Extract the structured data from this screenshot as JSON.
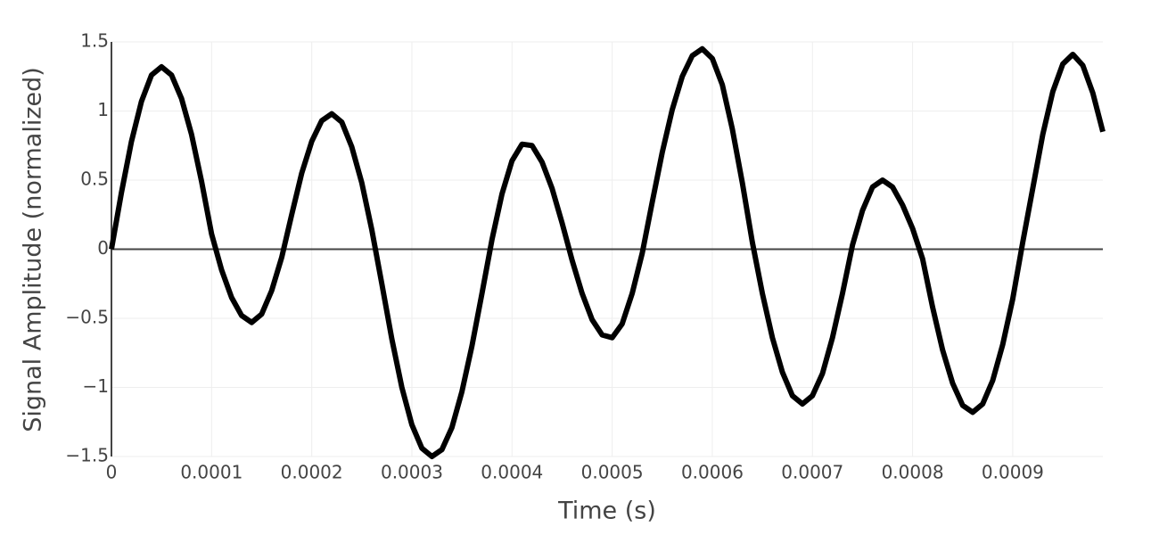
{
  "chart_data": {
    "type": "line",
    "xlabel": "Time (s)",
    "ylabel": "Signal Amplitude (normalized)",
    "x": [
      0,
      1e-05,
      2e-05,
      3e-05,
      4e-05,
      5e-05,
      6e-05,
      7e-05,
      8e-05,
      9e-05,
      0.0001,
      0.00011,
      0.00012,
      0.00013,
      0.00014,
      0.00015,
      0.00016,
      0.00017,
      0.00018,
      0.00019,
      0.0002,
      0.00021,
      0.00022,
      0.00023,
      0.00024,
      0.00025,
      0.00026,
      0.00027,
      0.00028,
      0.00029,
      0.0003,
      0.00031,
      0.00032,
      0.00033,
      0.00034,
      0.00035,
      0.00036,
      0.00037,
      0.00038,
      0.00039,
      0.0004,
      0.00041,
      0.00042,
      0.00043,
      0.00044,
      0.00045,
      0.00046,
      0.00047,
      0.00048,
      0.00049,
      0.0005,
      0.00051,
      0.00052,
      0.00053,
      0.00054,
      0.00055,
      0.00056,
      0.00057,
      0.00058,
      0.00059,
      0.0006,
      0.00061,
      0.00062,
      0.00063,
      0.00064,
      0.00065,
      0.00066,
      0.00067,
      0.00068,
      0.00069,
      0.0007,
      0.00071,
      0.00072,
      0.00073,
      0.00074,
      0.00075,
      0.00076,
      0.00077,
      0.00078,
      0.00079,
      0.0008,
      0.00081,
      0.00082,
      0.00083,
      0.00084,
      0.00085,
      0.00086,
      0.00087,
      0.00088,
      0.00089,
      0.0009,
      0.00091,
      0.00092,
      0.00093,
      0.00094,
      0.00095,
      0.00096,
      0.00097,
      0.00098,
      0.00099
    ],
    "values": [
      0,
      0.41,
      0.78,
      1.07,
      1.26,
      1.32,
      1.26,
      1.09,
      0.83,
      0.49,
      0.11,
      -0.15,
      -0.35,
      -0.48,
      -0.53,
      -0.47,
      -0.3,
      -0.06,
      0.25,
      0.55,
      0.78,
      0.93,
      0.98,
      0.92,
      0.74,
      0.48,
      0.14,
      -0.25,
      -0.65,
      -1.0,
      -1.27,
      -1.44,
      -1.5,
      -1.45,
      -1.29,
      -1.03,
      -0.7,
      -0.32,
      0.07,
      0.4,
      0.64,
      0.76,
      0.75,
      0.63,
      0.44,
      0.19,
      -0.08,
      -0.32,
      -0.51,
      -0.62,
      -0.64,
      -0.54,
      -0.32,
      -0.03,
      0.34,
      0.7,
      1.01,
      1.25,
      1.4,
      1.45,
      1.38,
      1.19,
      0.87,
      0.48,
      0.05,
      -0.32,
      -0.64,
      -0.89,
      -1.06,
      -1.12,
      -1.06,
      -0.9,
      -0.64,
      -0.32,
      0.03,
      0.28,
      0.45,
      0.5,
      0.45,
      0.32,
      0.15,
      -0.07,
      -0.42,
      -0.73,
      -0.97,
      -1.13,
      -1.18,
      -1.12,
      -0.95,
      -0.69,
      -0.36,
      0.05,
      0.44,
      0.83,
      1.14,
      1.34,
      1.41,
      1.33,
      1.13,
      0.85
    ],
    "color": "#000000",
    "xlim": [
      0,
      0.00099
    ],
    "xticks": [
      0,
      0.0001,
      0.0002,
      0.0003,
      0.0004,
      0.0005,
      0.0006,
      0.0007,
      0.0008,
      0.0009
    ],
    "ylim": [
      -1.5,
      1.5
    ],
    "yticks": [
      {
        "value": -1.5,
        "label": "−1.5"
      },
      {
        "value": -1,
        "label": "−1"
      },
      {
        "value": -0.5,
        "label": "−0.5"
      },
      0,
      0.5,
      1,
      1.5
    ],
    "grid": true
  }
}
